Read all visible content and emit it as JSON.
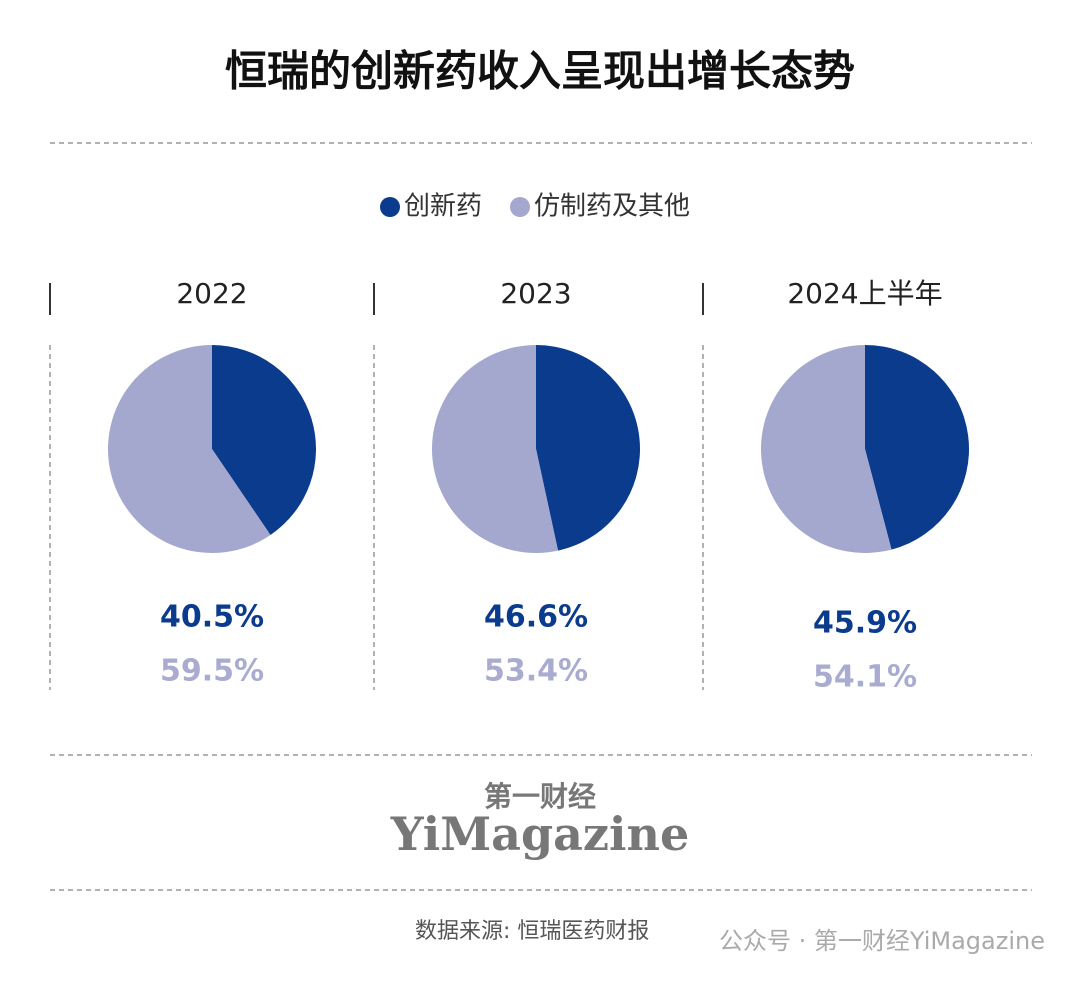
{
  "title": "恒瑞的创新药收入呈现出增长态势",
  "chart_data": [
    {
      "type": "pie",
      "title": "2022",
      "categories": [
        "创新药",
        "仿制药及其他"
      ],
      "values": [
        40.5,
        59.5
      ],
      "value_labels": [
        "40.5%",
        "59.5%"
      ],
      "colors": [
        "#0b3b8c",
        "#a4a8cf"
      ]
    },
    {
      "type": "pie",
      "title": "2023",
      "categories": [
        "创新药",
        "仿制药及其他"
      ],
      "values": [
        46.6,
        53.4
      ],
      "value_labels": [
        "46.6%",
        "53.4%"
      ],
      "colors": [
        "#0b3b8c",
        "#a4a8cf"
      ]
    },
    {
      "type": "pie",
      "title": "2024上半年",
      "categories": [
        "创新药",
        "仿制药及其他"
      ],
      "values": [
        45.9,
        54.1
      ],
      "value_labels": [
        "45.9%",
        "54.1%"
      ],
      "colors": [
        "#0b3b8c",
        "#a4a8cf"
      ]
    }
  ],
  "brand": {
    "name": "第一财经",
    "logo": "YiMagazine"
  },
  "source": "数据来源: 恒瑞医药财报",
  "watermark": "公众号 · 第一财经YiMagazine"
}
